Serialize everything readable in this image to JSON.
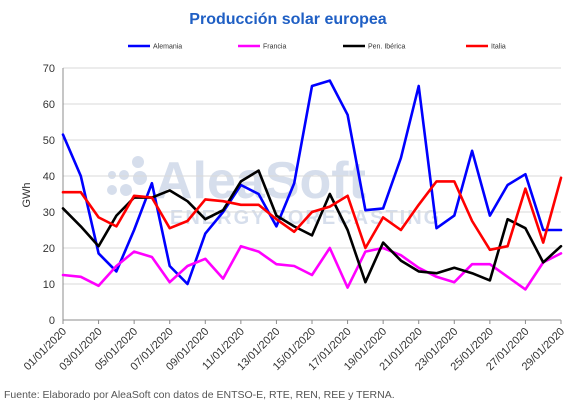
{
  "colors": {
    "title": "#1f5fc4",
    "grid": "#d9d9d9",
    "axis": "#8c8c8c",
    "watermark": "#c9d3e6",
    "text": "#333333"
  },
  "watermark": {
    "line1": "AleaSoft",
    "line2": "ENERGY FORECASTING"
  },
  "footnote": "Fuente: Elaborado por AleaSoft con datos de ENTSO-E, RTE, REN, REE y TERNA.",
  "chart_data": {
    "type": "line",
    "title": "Producción solar europea",
    "xlabel": "",
    "ylabel": "GWh",
    "ylim": [
      0,
      70
    ],
    "yticks": [
      0,
      10,
      20,
      30,
      40,
      50,
      60,
      70
    ],
    "xlim": [
      1,
      29
    ],
    "xtick_days": [
      1,
      3,
      5,
      7,
      9,
      11,
      13,
      15,
      17,
      19,
      21,
      23,
      25,
      27,
      29
    ],
    "xtick_labels": [
      "01/01/2020",
      "03/01/2020",
      "05/01/2020",
      "07/01/2020",
      "09/01/2020",
      "11/01/2020",
      "13/01/2020",
      "15/01/2020",
      "17/01/2020",
      "19/01/2020",
      "21/01/2020",
      "23/01/2020",
      "25/01/2020",
      "27/01/2020",
      "29/01/2020"
    ],
    "grid": "horizontal",
    "legend_position": "top",
    "x": [
      1,
      2,
      3,
      4,
      5,
      6,
      7,
      8,
      9,
      10,
      11,
      12,
      13,
      14,
      15,
      16,
      17,
      18,
      19,
      20,
      21,
      22,
      23,
      24,
      25,
      26,
      27,
      28,
      29
    ],
    "series": [
      {
        "name": "Alemania",
        "color": "#0000ff",
        "values": [
          51.5,
          40,
          18.5,
          13.5,
          25,
          38,
          15,
          10,
          24,
          30,
          37.5,
          35,
          26,
          38,
          65,
          66.5,
          57,
          30.5,
          31,
          45,
          65,
          25.5,
          29,
          47,
          29,
          37.5,
          40.5,
          25,
          25
        ]
      },
      {
        "name": "Francia",
        "color": "#ff00ff",
        "values": [
          12.5,
          12,
          9.5,
          15,
          19,
          17.5,
          10.5,
          15,
          17,
          11.5,
          20.5,
          19,
          15.5,
          15,
          12.5,
          20,
          9,
          19,
          20,
          18,
          14.5,
          12,
          10.5,
          15.5,
          15.5,
          12,
          8.5,
          16,
          18.5
        ]
      },
      {
        "name": "Pen. Ibérica",
        "color": "#000000",
        "values": [
          31,
          26,
          20.5,
          29,
          34,
          34,
          36,
          33,
          28,
          30.5,
          38.5,
          41.5,
          29,
          26,
          23.5,
          35,
          25,
          10.5,
          21.5,
          16.5,
          13.5,
          13,
          14.5,
          13,
          11,
          28,
          25.5,
          16,
          20.5
        ]
      },
      {
        "name": "Italia",
        "color": "#ff0000",
        "values": [
          35.5,
          35.5,
          28.5,
          26,
          34.5,
          34,
          25.5,
          27.5,
          33.5,
          33,
          32,
          32,
          28,
          24.5,
          30,
          31.5,
          34.5,
          20,
          28.5,
          25,
          32,
          38.5,
          38.5,
          27.5,
          19.5,
          20.5,
          36.5,
          21.5,
          39.5
        ]
      }
    ]
  }
}
